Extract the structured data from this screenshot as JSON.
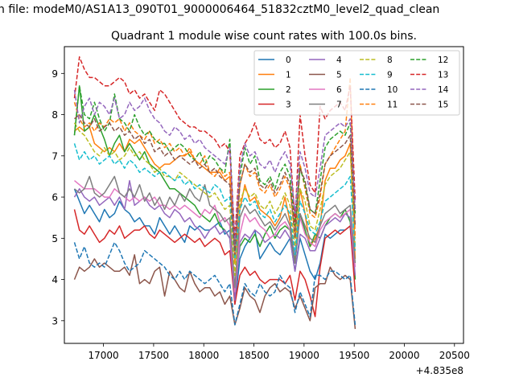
{
  "suptitle": "n file: modeM0/AS1A13_090T01_9000006464_51832cztM0_level2_quad_clean",
  "chart_data": {
    "type": "line",
    "title": "Quadrant 1 module wise count rates with 100.0s bins.",
    "xlabel": "",
    "ylabel": "",
    "x_offset_label": "+4.835e8",
    "xlim": [
      16610,
      20590
    ],
    "ylim": [
      2.45,
      9.65
    ],
    "xticks": [
      17000,
      17500,
      18000,
      18500,
      19000,
      19500,
      20000,
      20500
    ],
    "xtick_labels": [
      "17000",
      "17500",
      "18000",
      "18500",
      "19000",
      "19500",
      "20000",
      "20500"
    ],
    "yticks": [
      3,
      4,
      5,
      6,
      7,
      8,
      9
    ],
    "ytick_labels": [
      "3",
      "4",
      "5",
      "6",
      "7",
      "8",
      "9"
    ],
    "grid": false,
    "legend_position": "top-right",
    "legend_columns": 4,
    "x_start": 16710,
    "x_step": 50,
    "series": [
      {
        "name": "0",
        "color": "#1f77b4",
        "dash": "solid",
        "values": [
          6.2,
          5.9,
          5.6,
          5.8,
          5.6,
          5.4,
          5.7,
          5.5,
          5.6,
          5.9,
          5.7,
          5.6,
          5.4,
          5.5,
          5.3,
          5.3,
          5.1,
          5.5,
          5.3,
          5.1,
          5.3,
          5.1,
          4.9,
          5.3,
          5.2,
          5.3,
          5.2,
          5.2,
          5.3,
          5.4,
          5.1,
          5.2,
          3.4,
          4.5,
          4.8,
          5.0,
          5.2,
          4.5,
          4.7,
          4.9,
          4.7,
          4.6,
          4.8,
          5.0,
          4.2,
          5.0,
          4.6,
          4.2,
          4.0,
          4.4,
          5.1,
          5.0,
          5.1,
          5.2,
          5.2,
          5.3,
          4.0
        ]
      },
      {
        "name": "1",
        "color": "#ff7f0e",
        "dash": "solid",
        "values": [
          7.6,
          7.7,
          7.6,
          7.7,
          7.3,
          7.2,
          7.1,
          7.2,
          7.1,
          7.3,
          7.1,
          7.4,
          7.3,
          7.4,
          7.2,
          7.0,
          6.8,
          6.7,
          6.8,
          6.8,
          6.9,
          7.0,
          7.0,
          7.1,
          6.9,
          6.8,
          6.7,
          6.6,
          6.6,
          6.6,
          6.4,
          6.5,
          4.4,
          5.7,
          6.3,
          5.9,
          6.0,
          5.7,
          5.6,
          5.5,
          5.3,
          5.5,
          6.0,
          5.4,
          4.4,
          6.2,
          5.6,
          4.8,
          5.0,
          5.3,
          6.4,
          6.7,
          6.7,
          6.9,
          7.0,
          7.3,
          4.5
        ]
      },
      {
        "name": "2",
        "color": "#2ca02c",
        "dash": "solid",
        "values": [
          7.5,
          8.7,
          7.6,
          7.7,
          8.0,
          7.7,
          7.4,
          7.0,
          7.3,
          7.5,
          7.1,
          7.3,
          7.1,
          6.9,
          7.1,
          6.8,
          6.7,
          6.6,
          6.4,
          6.2,
          6.2,
          6.1,
          6.0,
          5.9,
          5.8,
          5.6,
          5.5,
          5.4,
          5.6,
          5.3,
          5.2,
          5.0,
          3.6,
          4.8,
          5.0,
          4.9,
          5.1,
          4.8,
          5.1,
          5.3,
          5.0,
          5.2,
          5.3,
          5.2,
          4.4,
          5.6,
          5.2,
          4.8,
          5.1,
          5.0,
          5.3,
          5.5,
          5.6,
          5.5,
          5.7,
          5.4,
          4.0
        ]
      },
      {
        "name": "3",
        "color": "#d62728",
        "dash": "solid",
        "values": [
          5.7,
          5.2,
          5.1,
          5.3,
          5.1,
          4.9,
          5.0,
          5.2,
          5.1,
          5.3,
          5.0,
          5.1,
          5.2,
          5.2,
          5.3,
          5.1,
          5.0,
          5.2,
          5.1,
          5.0,
          4.9,
          5.0,
          5.1,
          5.0,
          4.9,
          5.0,
          4.8,
          4.9,
          5.0,
          4.9,
          4.6,
          4.7,
          3.4,
          4.1,
          4.3,
          4.1,
          4.2,
          4.0,
          3.9,
          4.0,
          4.0,
          4.0,
          3.9,
          4.1,
          3.5,
          4.2,
          4.0,
          3.6,
          3.1,
          4.3,
          5.0,
          5.1,
          5.2,
          5.1,
          5.2,
          5.3,
          3.7
        ]
      },
      {
        "name": "4",
        "color": "#9467bd",
        "dash": "solid",
        "values": [
          6.0,
          6.2,
          6.0,
          5.9,
          6.0,
          5.8,
          5.9,
          6.0,
          5.8,
          6.0,
          5.7,
          6.4,
          5.8,
          5.9,
          6.0,
          5.8,
          5.7,
          5.8,
          5.6,
          5.5,
          5.7,
          5.6,
          5.4,
          5.5,
          5.3,
          5.2,
          5.0,
          5.2,
          5.3,
          5.1,
          5.2,
          5.0,
          3.5,
          4.9,
          5.1,
          5.0,
          5.2,
          5.1,
          4.9,
          5.0,
          5.1,
          5.0,
          5.2,
          5.0,
          4.2,
          5.1,
          5.0,
          4.7,
          4.7,
          5.0,
          5.3,
          5.4,
          5.5,
          5.4,
          5.6,
          5.5,
          4.1
        ]
      },
      {
        "name": "5",
        "color": "#8c564b",
        "dash": "solid",
        "values": [
          4.0,
          4.3,
          4.2,
          4.3,
          4.5,
          4.3,
          4.4,
          4.3,
          4.2,
          4.2,
          4.3,
          4.1,
          4.6,
          3.9,
          4.0,
          3.9,
          4.2,
          4.3,
          3.6,
          4.2,
          4.0,
          3.8,
          3.7,
          4.2,
          3.9,
          3.7,
          3.8,
          3.8,
          3.6,
          3.7,
          3.4,
          3.6,
          2.9,
          3.3,
          3.8,
          3.6,
          3.5,
          3.2,
          3.6,
          3.8,
          3.9,
          3.7,
          3.8,
          3.7,
          3.3,
          3.6,
          3.3,
          3.0,
          3.8,
          3.9,
          3.9,
          4.3,
          4.1,
          4.0,
          4.1,
          4.0,
          2.8
        ]
      },
      {
        "name": "6",
        "color": "#e377c2",
        "dash": "solid",
        "values": [
          6.4,
          6.3,
          6.2,
          6.2,
          6.2,
          6.1,
          6.0,
          6.0,
          6.2,
          6.1,
          6.0,
          5.9,
          6.0,
          5.9,
          6.0,
          5.9,
          6.0,
          5.8,
          5.8,
          5.7,
          5.8,
          5.7,
          5.8,
          5.7,
          5.6,
          5.5,
          5.7,
          5.6,
          5.8,
          5.4,
          5.5,
          5.3,
          3.7,
          5.1,
          5.6,
          5.4,
          5.5,
          5.3,
          5.2,
          5.0,
          5.1,
          5.3,
          5.4,
          5.2,
          4.6,
          5.5,
          5.1,
          4.9,
          4.8,
          5.2,
          5.4,
          5.5,
          5.6,
          5.5,
          5.6,
          5.7,
          4.3
        ]
      },
      {
        "name": "7",
        "color": "#7f7f7f",
        "dash": "solid",
        "values": [
          6.2,
          6.1,
          6.2,
          6.5,
          6.1,
          6.0,
          6.1,
          6.3,
          6.5,
          6.1,
          6.0,
          6.2,
          6.0,
          6.3,
          5.9,
          6.1,
          5.8,
          6.0,
          5.7,
          6.0,
          5.8,
          6.1,
          5.9,
          6.2,
          6.0,
          5.9,
          6.3,
          5.8,
          5.7,
          5.6,
          5.4,
          5.5,
          3.8,
          5.5,
          5.8,
          5.6,
          5.7,
          5.5,
          5.3,
          5.4,
          5.2,
          5.4,
          5.6,
          5.3,
          4.4,
          5.6,
          5.3,
          5.0,
          4.9,
          5.3,
          5.6,
          5.7,
          5.8,
          5.6,
          5.7,
          5.8,
          4.4
        ]
      },
      {
        "name": "8",
        "color": "#bcbd22",
        "dash": "dashed",
        "values": [
          7.8,
          7.6,
          7.5,
          7.3,
          7.1,
          7.0,
          7.2,
          7.0,
          7.1,
          6.9,
          7.0,
          7.2,
          7.0,
          7.1,
          6.9,
          6.8,
          6.6,
          6.7,
          6.5,
          6.5,
          6.4,
          6.6,
          6.5,
          6.4,
          6.3,
          6.2,
          6.1,
          6.0,
          6.1,
          5.9,
          5.7,
          5.8,
          4.1,
          5.9,
          6.2,
          6.0,
          6.1,
          5.8,
          5.7,
          5.9,
          5.6,
          5.8,
          6.1,
          5.8,
          4.8,
          6.2,
          5.9,
          5.3,
          5.2,
          5.7,
          6.3,
          6.5,
          6.6,
          6.7,
          6.9,
          7.1,
          4.8
        ]
      },
      {
        "name": "9",
        "color": "#17becf",
        "dash": "dashed",
        "values": [
          7.3,
          6.9,
          7.1,
          6.9,
          7.0,
          6.8,
          6.9,
          7.0,
          6.8,
          6.9,
          6.7,
          6.9,
          6.8,
          6.6,
          6.7,
          6.6,
          6.5,
          6.6,
          6.6,
          6.5,
          6.4,
          6.5,
          6.3,
          6.4,
          6.2,
          6.3,
          6.2,
          6.1,
          6.3,
          6.2,
          5.9,
          6.0,
          4.5,
          5.7,
          6.0,
          5.8,
          5.9,
          5.6,
          5.5,
          5.7,
          5.4,
          5.6,
          5.8,
          5.6,
          4.6,
          5.9,
          5.6,
          5.2,
          5.1,
          5.4,
          5.9,
          6.0,
          6.1,
          6.2,
          6.3,
          6.5,
          4.7
        ]
      },
      {
        "name": "10",
        "color": "#1f77b4",
        "dash": "dashed",
        "values": [
          4.9,
          4.5,
          4.8,
          4.4,
          4.3,
          4.4,
          4.3,
          4.6,
          4.9,
          4.7,
          4.4,
          4.2,
          4.3,
          4.4,
          4.7,
          4.6,
          4.5,
          4.4,
          4.3,
          4.1,
          4.0,
          4.2,
          4.0,
          4.2,
          4.1,
          4.0,
          3.9,
          4.0,
          4.1,
          3.9,
          3.7,
          3.9,
          2.9,
          3.4,
          3.9,
          3.7,
          3.6,
          3.9,
          3.7,
          3.6,
          3.7,
          4.1,
          3.9,
          3.8,
          3.2,
          3.7,
          3.4,
          3.1,
          4.1,
          4.1,
          4.0,
          4.2,
          4.2,
          4.1,
          4.0,
          4.1,
          2.9
        ]
      },
      {
        "name": "11",
        "color": "#ff7f0e",
        "dash": "dashed",
        "values": [
          8.3,
          7.9,
          7.7,
          7.8,
          7.6,
          7.8,
          7.7,
          7.9,
          7.8,
          7.9,
          7.6,
          7.8,
          7.6,
          7.5,
          7.4,
          7.6,
          7.3,
          7.4,
          7.2,
          7.3,
          7.1,
          7.2,
          7.0,
          7.2,
          6.9,
          6.8,
          7.0,
          6.6,
          6.5,
          6.7,
          6.5,
          6.6,
          4.7,
          6.3,
          6.8,
          6.5,
          6.6,
          6.2,
          6.1,
          6.3,
          6.0,
          6.2,
          6.5,
          6.2,
          5.1,
          6.8,
          6.2,
          5.6,
          5.5,
          6.0,
          6.8,
          7.0,
          7.2,
          7.4,
          7.6,
          8.9,
          5.0
        ]
      },
      {
        "name": "12",
        "color": "#2ca02c",
        "dash": "dashed",
        "values": [
          7.5,
          8.7,
          8.0,
          7.9,
          8.3,
          7.9,
          7.6,
          7.8,
          8.5,
          7.9,
          7.8,
          7.6,
          8.0,
          7.7,
          7.5,
          7.6,
          7.4,
          7.3,
          7.3,
          7.1,
          7.2,
          7.3,
          7.2,
          7.0,
          6.9,
          7.1,
          6.8,
          7.0,
          6.9,
          6.7,
          6.6,
          7.4,
          4.7,
          6.5,
          7.2,
          6.8,
          7.0,
          6.4,
          6.3,
          6.5,
          6.2,
          6.6,
          6.8,
          6.5,
          5.3,
          6.7,
          6.3,
          5.7,
          5.6,
          6.4,
          7.2,
          7.4,
          7.5,
          7.6,
          7.5,
          7.8,
          5.6
        ]
      },
      {
        "name": "13",
        "color": "#d62728",
        "dash": "dashed",
        "values": [
          8.4,
          9.4,
          9.1,
          8.9,
          8.9,
          8.8,
          8.7,
          8.7,
          8.8,
          8.9,
          8.8,
          8.5,
          8.6,
          8.4,
          8.5,
          8.3,
          8.1,
          8.6,
          8.5,
          8.3,
          8.1,
          7.9,
          7.8,
          7.7,
          7.7,
          7.6,
          7.6,
          7.5,
          7.4,
          7.2,
          7.3,
          7.1,
          5.0,
          7.0,
          7.3,
          7.5,
          7.8,
          7.4,
          7.3,
          7.4,
          7.2,
          7.3,
          7.6,
          7.2,
          5.4,
          8.0,
          7.0,
          6.3,
          6.1,
          8.2,
          7.9,
          8.1,
          8.2,
          8.3,
          8.1,
          8.7,
          5.9
        ]
      },
      {
        "name": "14",
        "color": "#9467bd",
        "dash": "dashed",
        "values": [
          8.6,
          7.8,
          8.2,
          8.4,
          8.0,
          8.3,
          8.2,
          8.0,
          8.4,
          7.9,
          8.0,
          8.3,
          8.1,
          8.2,
          8.4,
          8.1,
          7.9,
          7.8,
          7.6,
          7.5,
          7.7,
          7.6,
          7.4,
          7.5,
          7.3,
          7.4,
          7.2,
          7.1,
          7.0,
          6.9,
          6.8,
          7.2,
          4.8,
          6.7,
          7.3,
          7.0,
          7.1,
          6.8,
          6.7,
          6.9,
          6.6,
          6.9,
          7.1,
          6.8,
          5.6,
          7.1,
          6.7,
          6.1,
          6.0,
          6.7,
          7.5,
          7.6,
          7.7,
          7.8,
          7.7,
          7.9,
          5.7
        ]
      },
      {
        "name": "15",
        "color": "#8c564b",
        "dash": "dashed",
        "values": [
          7.9,
          8.0,
          7.8,
          7.7,
          7.9,
          7.6,
          7.7,
          7.8,
          7.6,
          7.7,
          7.5,
          7.6,
          7.4,
          7.5,
          7.3,
          7.4,
          7.1,
          7.2,
          7.0,
          7.1,
          6.9,
          7.0,
          6.9,
          6.8,
          6.9,
          6.7,
          6.8,
          6.6,
          6.7,
          6.5,
          6.4,
          6.3,
          4.6,
          6.3,
          6.8,
          6.6,
          6.7,
          6.3,
          6.2,
          6.4,
          6.1,
          6.3,
          6.6,
          6.3,
          5.0,
          6.7,
          6.4,
          5.7,
          5.6,
          6.1,
          6.8,
          7.0,
          7.1,
          7.2,
          7.3,
          7.5,
          5.3
        ]
      }
    ]
  }
}
